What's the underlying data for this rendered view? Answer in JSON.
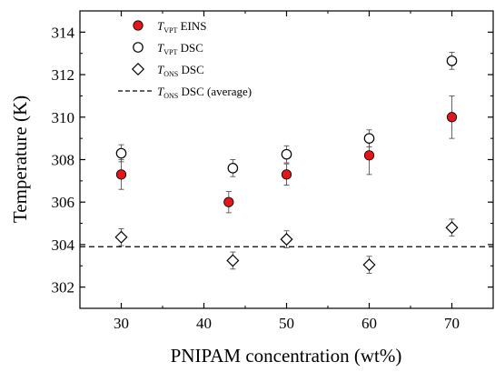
{
  "chart_data": {
    "type": "scatter",
    "xlabel": "PNIPAM concentration (wt%)",
    "ylabel": "Temperature (K)",
    "xlim": [
      25,
      75
    ],
    "ylim": [
      301,
      315
    ],
    "xticks": [
      30,
      40,
      50,
      60,
      70
    ],
    "yticks": [
      302,
      304,
      306,
      308,
      310,
      312,
      314
    ],
    "legend_position": "top-left",
    "series": [
      {
        "key": "tvpt_eins",
        "name_main": "T",
        "name_sub": "VPT",
        "name_rest": " EINS",
        "marker": "circle-filled",
        "color": "#e8141c",
        "points": [
          {
            "x": 30,
            "y": 307.3,
            "err": 0.7
          },
          {
            "x": 43,
            "y": 306.0,
            "err": 0.5
          },
          {
            "x": 50,
            "y": 307.3,
            "err": 0.5
          },
          {
            "x": 60,
            "y": 308.2,
            "err": 0.9
          },
          {
            "x": 70,
            "y": 310.0,
            "err": 1.0
          }
        ]
      },
      {
        "key": "tvpt_dsc",
        "name_main": "T",
        "name_sub": "VPT",
        "name_rest": " DSC",
        "marker": "circle-open",
        "color": "#000000",
        "points": [
          {
            "x": 30,
            "y": 308.3,
            "err": 0.4
          },
          {
            "x": 43.5,
            "y": 307.6,
            "err": 0.4
          },
          {
            "x": 50,
            "y": 308.25,
            "err": 0.4
          },
          {
            "x": 60,
            "y": 309.0,
            "err": 0.4
          },
          {
            "x": 70,
            "y": 312.65,
            "err": 0.4
          }
        ]
      },
      {
        "key": "tons_dsc",
        "name_main": "T",
        "name_sub": "ONS",
        "name_rest": " DSC",
        "marker": "diamond-open",
        "color": "#000000",
        "points": [
          {
            "x": 30,
            "y": 304.35,
            "err": 0.4
          },
          {
            "x": 43.5,
            "y": 303.25,
            "err": 0.4
          },
          {
            "x": 50,
            "y": 304.25,
            "err": 0.4
          },
          {
            "x": 60,
            "y": 303.05,
            "err": 0.4
          },
          {
            "x": 70,
            "y": 304.8,
            "err": 0.4
          }
        ]
      }
    ],
    "reference_line": {
      "name_main": "T",
      "name_sub": "ONS",
      "name_rest": " DSC (average)",
      "y": 303.9,
      "style": "dashed",
      "color": "#000000"
    }
  }
}
